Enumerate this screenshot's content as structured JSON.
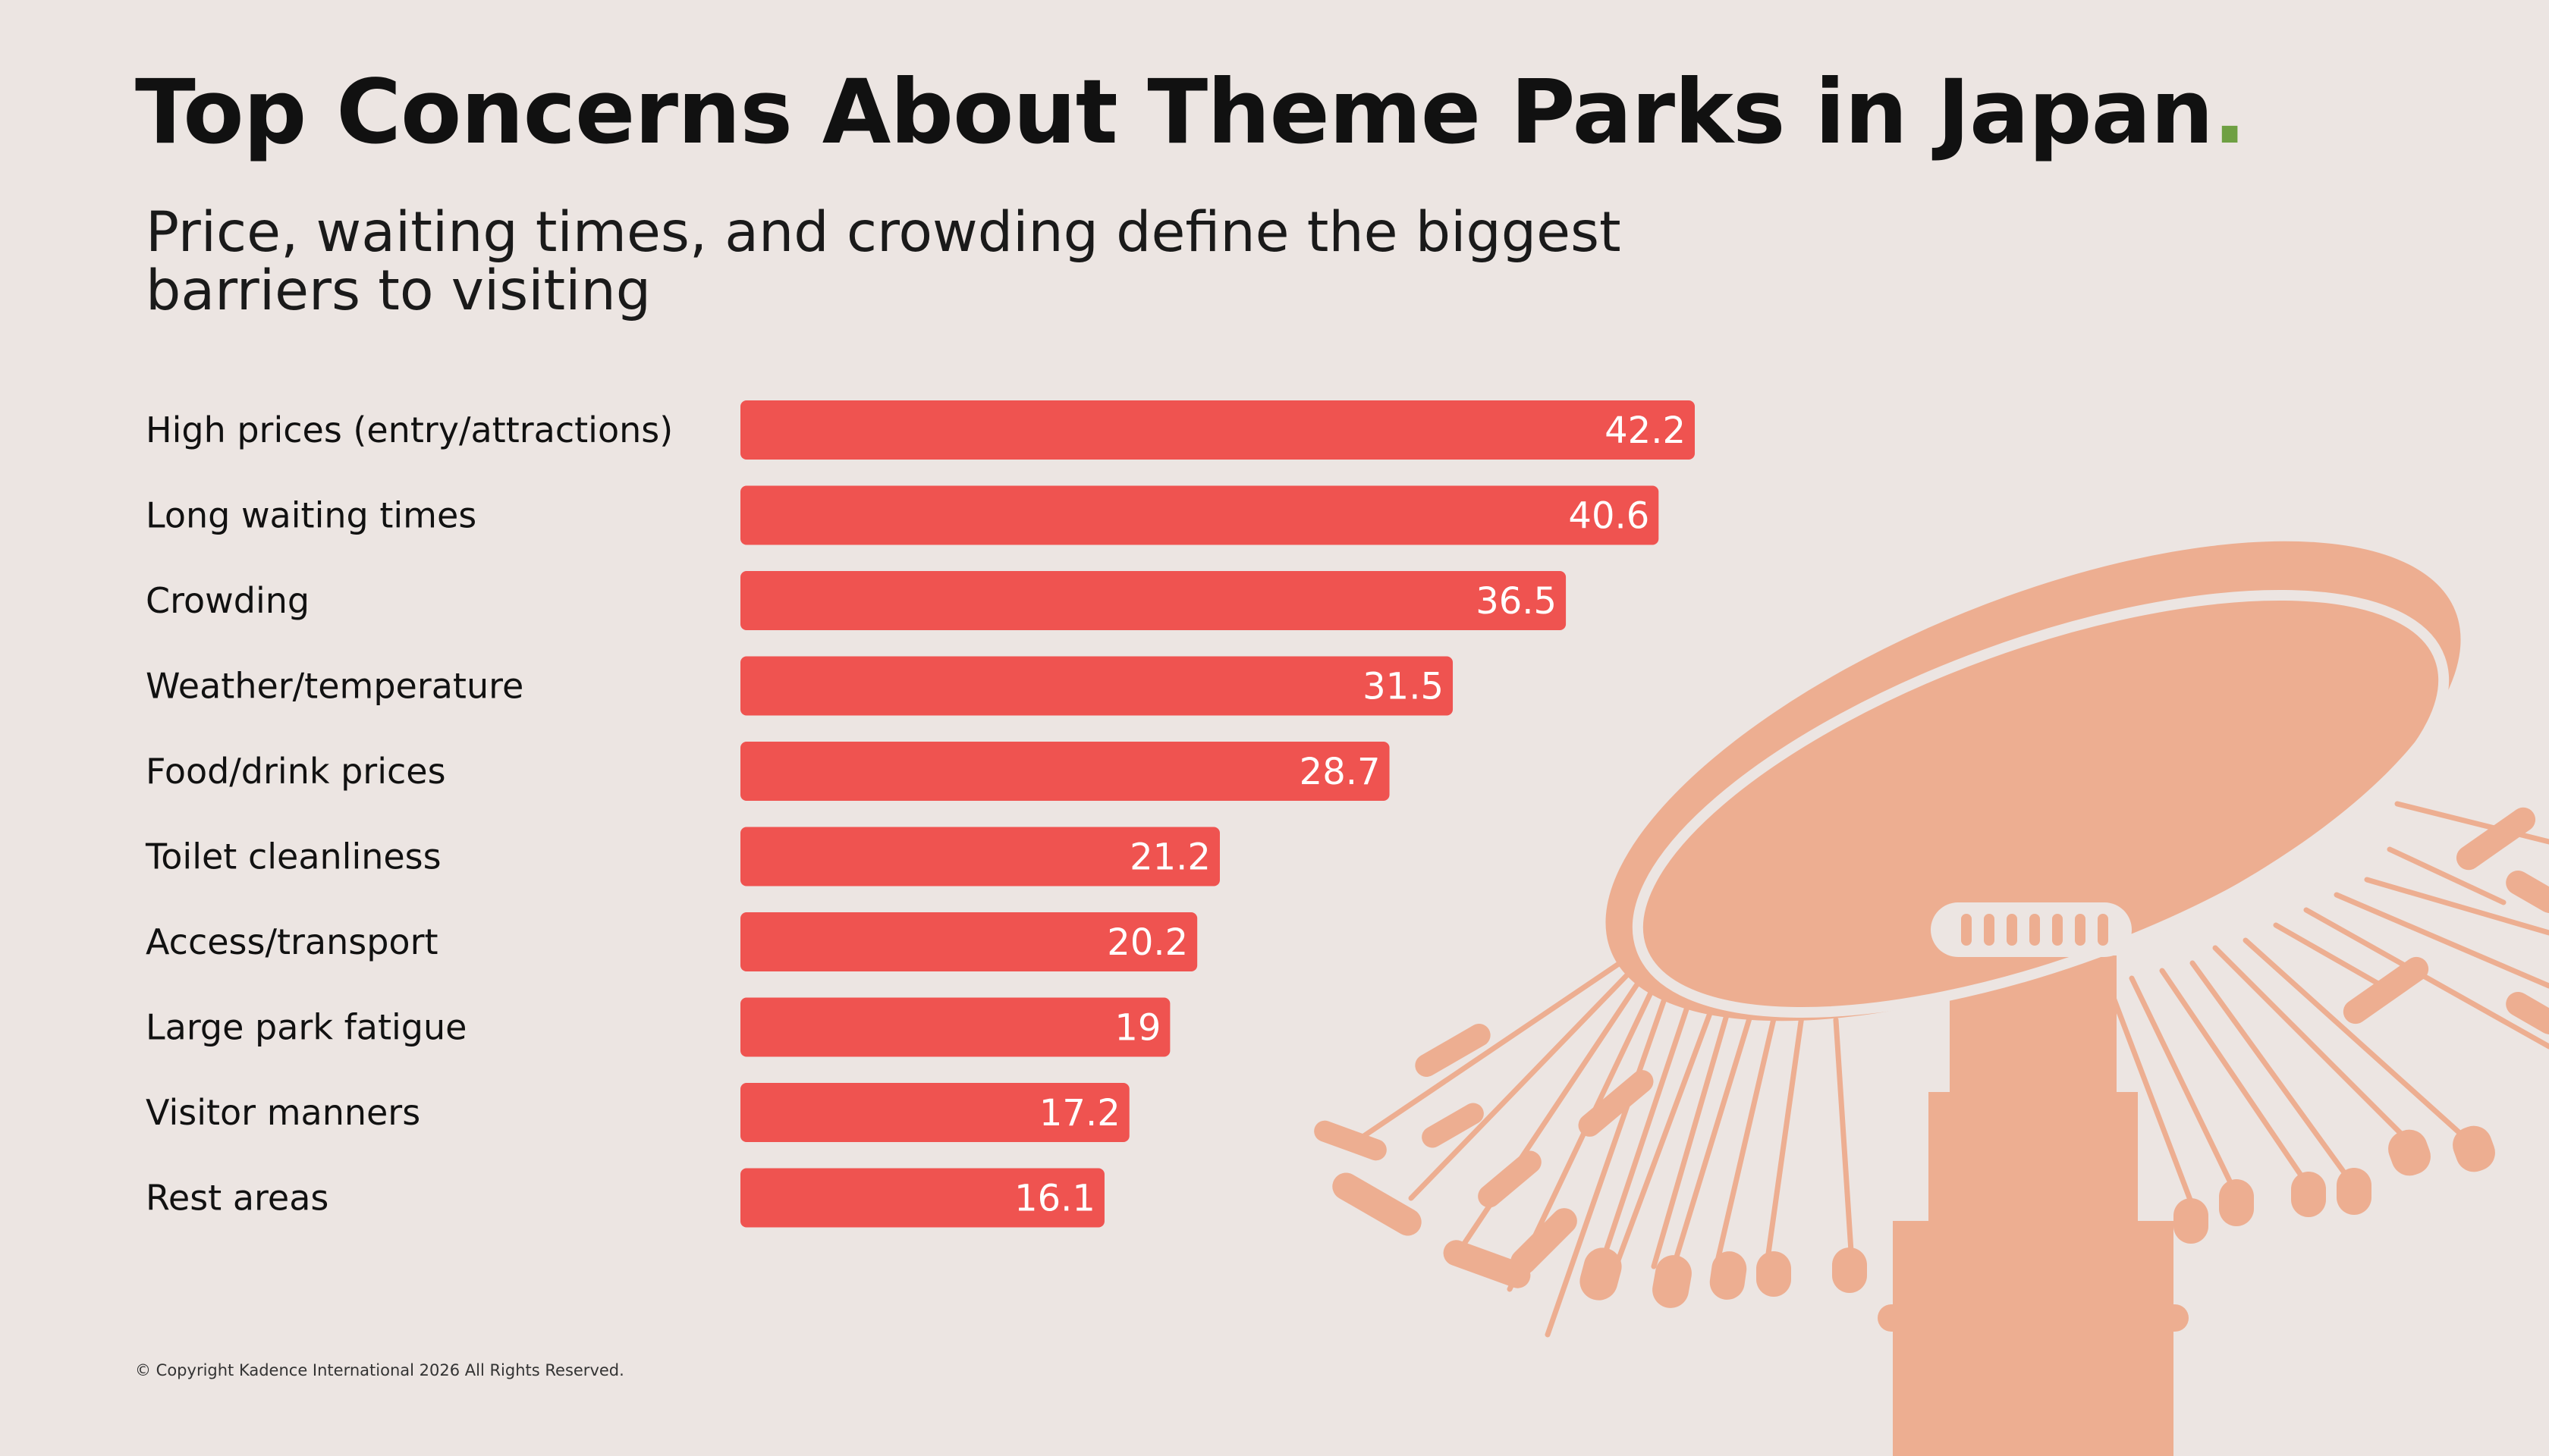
{
  "colors": {
    "background": "#ECE5E2",
    "bar": "#EF5350",
    "title_dot": "#6FA043",
    "illustration": "#EDAE91"
  },
  "title": "Top Concerns About Theme Parks in Japan",
  "title_dot": ".",
  "subtitle": "Price, waiting times, and crowding define the biggest barriers to visiting",
  "copyright": "© Copyright Kadence International 2026 All Rights Reserved.",
  "illustration": "swing-ride-silhouette",
  "chart_data": {
    "type": "bar",
    "orientation": "horizontal",
    "categories": [
      "High prices (entry/attractions)",
      "Long waiting times",
      "Crowding",
      "Weather/temperature",
      "Food/drink prices",
      "Toilet cleanliness",
      "Access/transport",
      "Large park fatigue",
      "Visitor manners",
      "Rest areas"
    ],
    "values": [
      42.2,
      40.6,
      36.5,
      31.5,
      28.7,
      21.2,
      20.2,
      19,
      17.2,
      16.1
    ],
    "value_labels": [
      "42.2",
      "40.6",
      "36.5",
      "31.5",
      "28.7",
      "21.2",
      "20.2",
      "19",
      "17.2",
      "16.1"
    ],
    "xlim": [
      0,
      42.2
    ],
    "grid": false,
    "legend": "none"
  }
}
